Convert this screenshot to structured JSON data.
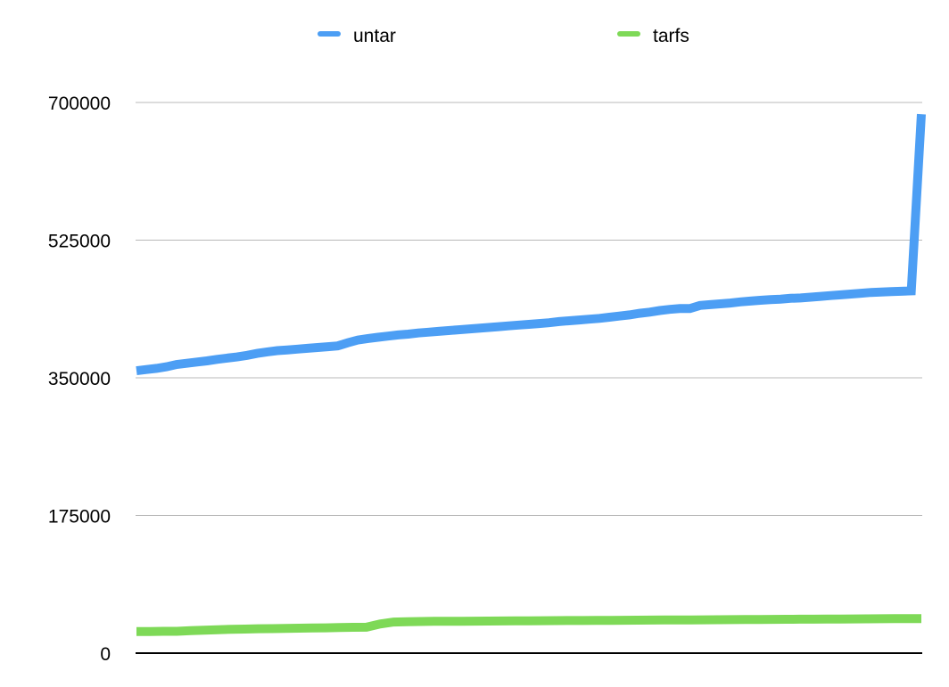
{
  "chart_data": {
    "type": "line",
    "title": "",
    "xlabel": "",
    "ylabel": "",
    "ylim": [
      0,
      700000
    ],
    "yticks": [
      0,
      175000,
      350000,
      525000,
      700000
    ],
    "ytick_labels": [
      "0",
      "175000",
      "350000",
      "525000",
      "700000"
    ],
    "grid": true,
    "legend_position": "top",
    "x_labels_shown": false,
    "series": [
      {
        "name": "untar",
        "color": "#4c9ef4",
        "values": [
          359000,
          360500,
          362000,
          364000,
          367000,
          368500,
          370000,
          371500,
          373500,
          375000,
          376500,
          378500,
          381000,
          383000,
          384500,
          385500,
          386500,
          387500,
          388500,
          389500,
          390500,
          394500,
          398000,
          400000,
          401500,
          403000,
          404500,
          405500,
          407000,
          408000,
          409000,
          410000,
          411000,
          412000,
          413000,
          414000,
          415000,
          416000,
          417000,
          418000,
          419000,
          420000,
          421500,
          422500,
          423500,
          424500,
          425500,
          427000,
          428500,
          430000,
          432000,
          433500,
          435500,
          437000,
          438000,
          438000,
          442000,
          443000,
          444000,
          445000,
          446500,
          447500,
          448500,
          449500,
          450000,
          451000,
          451500,
          452500,
          453500,
          454500,
          455500,
          456500,
          457500,
          458500,
          459000,
          459500,
          460000,
          460500,
          685000
        ]
      },
      {
        "name": "tarfs",
        "color": "#7ed957",
        "values": [
          27500,
          27500,
          27700,
          27800,
          28500,
          29200,
          29800,
          30300,
          30600,
          31000,
          31200,
          31500,
          31700,
          32000,
          32200,
          32500,
          32800,
          33000,
          37000,
          39500,
          40000,
          40200,
          40400,
          40500,
          40600,
          40700,
          40800,
          40900,
          41000,
          41100,
          41200,
          41300,
          41400,
          41500,
          41600,
          41700,
          41800,
          41900,
          42000,
          42100,
          42200,
          42300,
          42400,
          42500,
          42600,
          42700,
          42800,
          42900,
          43000,
          43100,
          43200,
          43300,
          43400,
          43500,
          43600,
          43700,
          43800,
          43900,
          44000
        ]
      }
    ]
  }
}
